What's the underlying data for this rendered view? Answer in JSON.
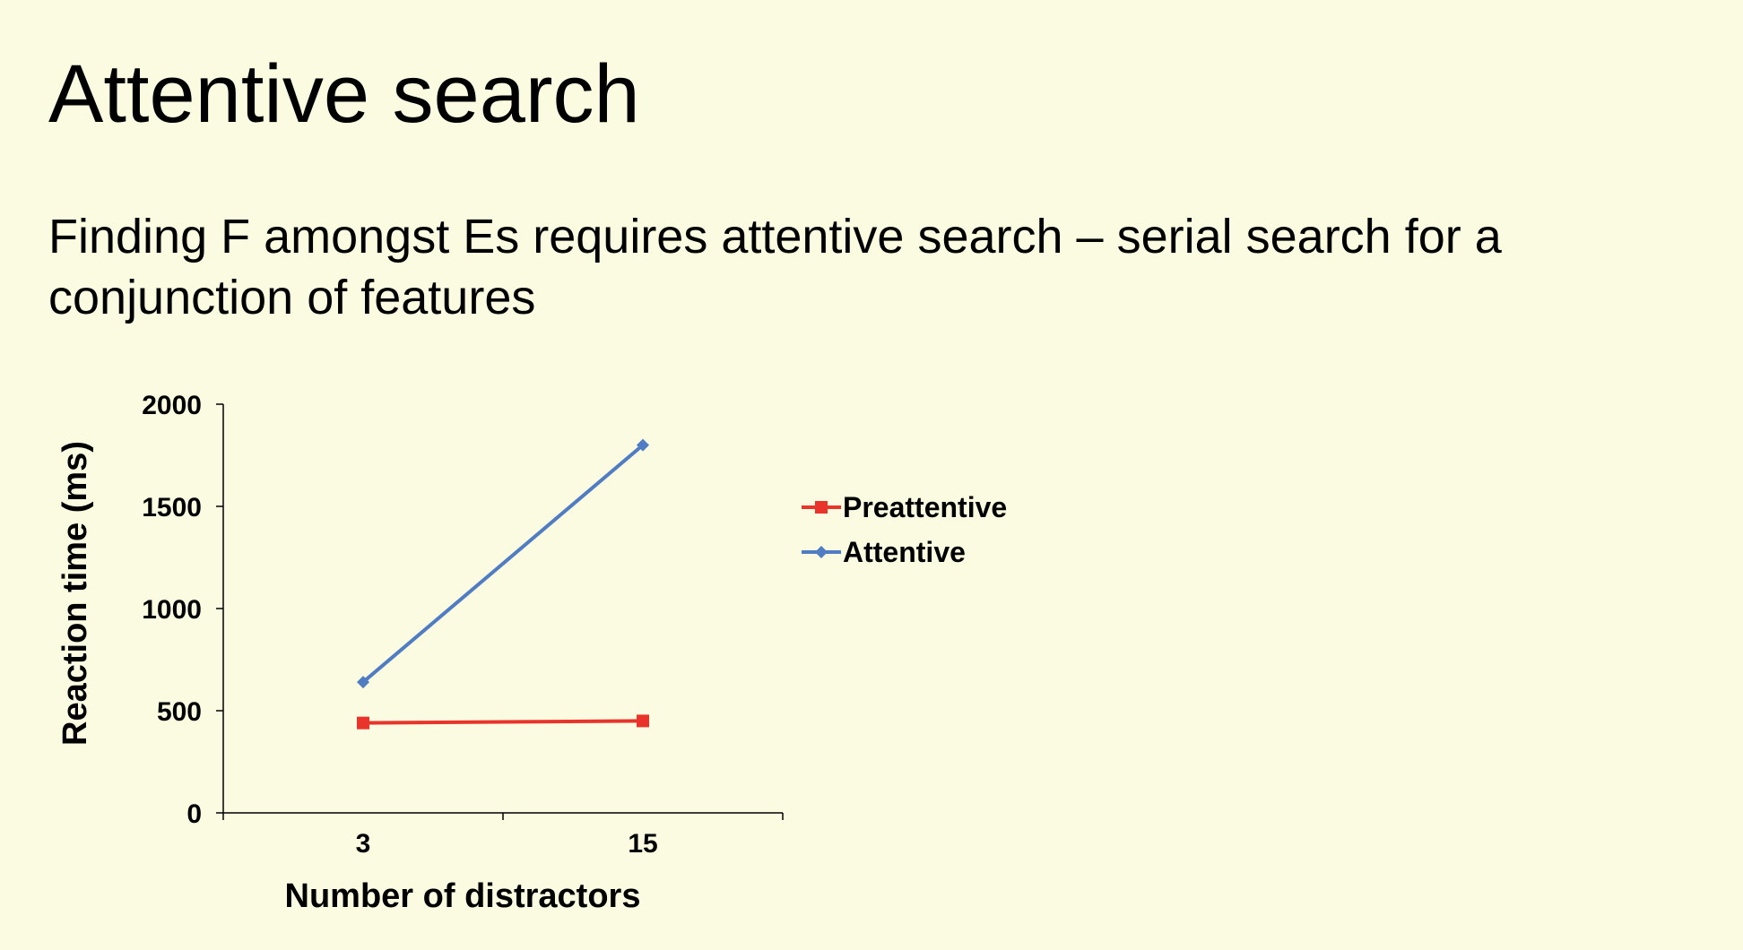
{
  "slide": {
    "title": "Attentive search",
    "subtitle": "Finding F amongst Es requires attentive search – serial search for a conjunction of features"
  },
  "chart_data": {
    "type": "line",
    "categories": [
      "3",
      "15"
    ],
    "series": [
      {
        "name": "Preattentive",
        "values": [
          440,
          450
        ],
        "color": "#e8342a",
        "marker": "square"
      },
      {
        "name": "Attentive",
        "values": [
          640,
          1800
        ],
        "color": "#4f7cc2",
        "marker": "diamond"
      }
    ],
    "xlabel": "Number of distractors",
    "ylabel": "Reaction time (ms)",
    "ylim": [
      0,
      2000
    ],
    "yticks": [
      0,
      500,
      1000,
      1500,
      2000
    ],
    "grid": false,
    "legend": "right"
  }
}
